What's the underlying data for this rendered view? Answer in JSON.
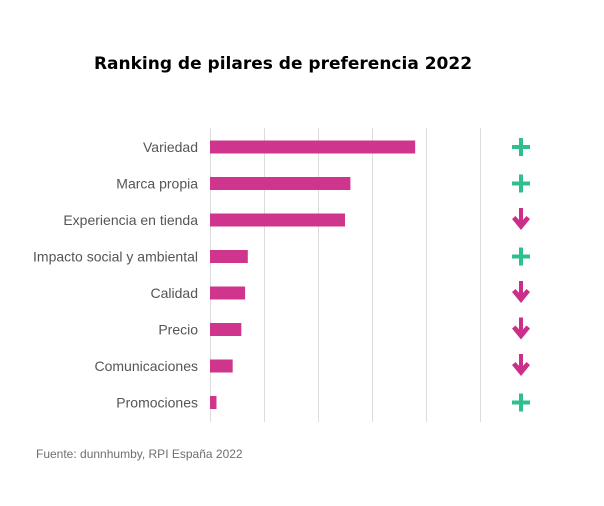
{
  "chart_data": {
    "type": "bar",
    "orientation": "horizontal",
    "title": "Ranking de pilares de preferencia 2022",
    "source": "Fuente: dunnhumby, RPI España 2022",
    "categories": [
      "Variedad",
      "Marca propia",
      "Experiencia en tienda",
      "Impacto social y ambiental",
      "Calidad",
      "Precio",
      "Comunicaciones",
      "Promociones"
    ],
    "values": [
      38,
      26,
      25,
      7,
      6.5,
      5.8,
      4.2,
      1.2
    ],
    "xlim": [
      0,
      50
    ],
    "grid": true,
    "trends": [
      "up",
      "up",
      "down",
      "up",
      "down",
      "down",
      "down",
      "up"
    ],
    "trend_icons": {
      "up": "plus-icon",
      "down": "down-arrow-icon"
    }
  },
  "colors": {
    "bar": "#d0358e",
    "plus": "#2fbf8f",
    "arrow": "#cc2f8a",
    "grid": "#dcdcdc",
    "label": "#555555"
  }
}
